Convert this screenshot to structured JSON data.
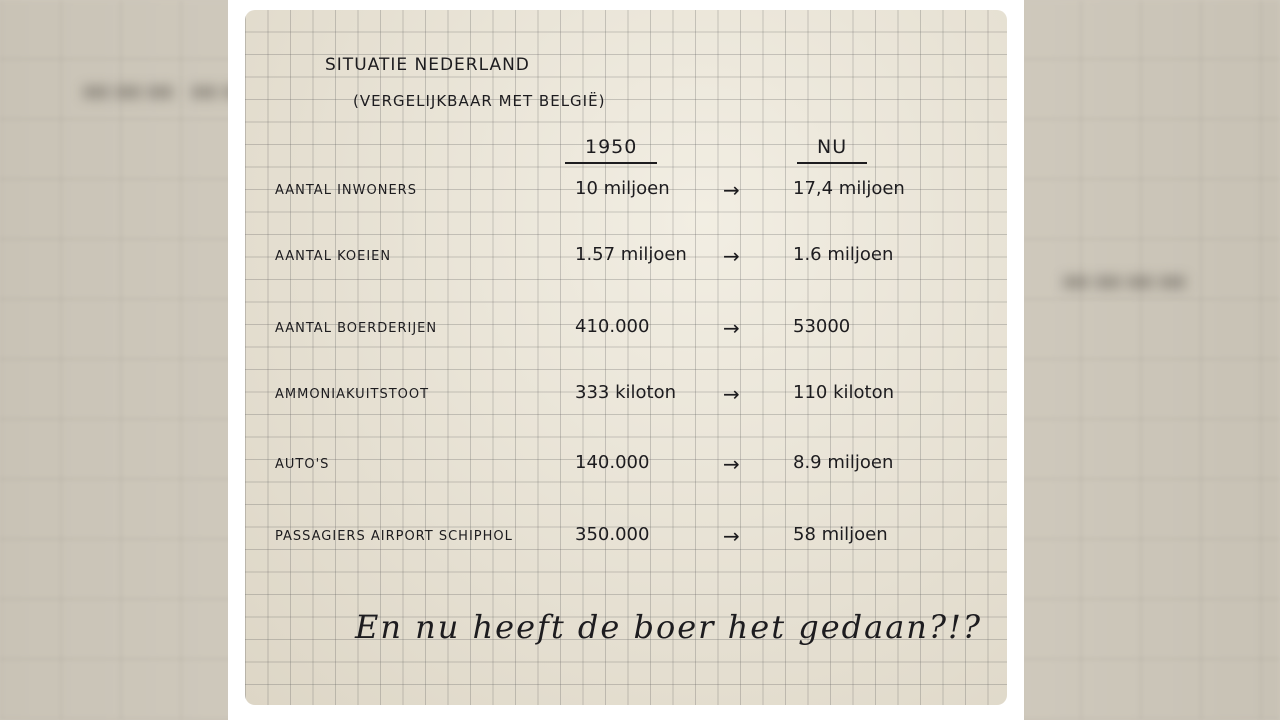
{
  "note": {
    "title": "Situatie Nederland",
    "subtitle": "(Vergelijkbaar met België)",
    "column_headers": [
      "1950",
      "NU"
    ],
    "arrow": "→",
    "rows": [
      {
        "label": "Aantal inwoners",
        "then": "10 miljoen",
        "now": "17,4 miljoen"
      },
      {
        "label": "Aantal koeien",
        "then": "1.57 miljoen",
        "now": "1.6 miljoen"
      },
      {
        "label": "Aantal boerderijen",
        "then": "410.000",
        "now": "53000"
      },
      {
        "label": "Ammoniakuitstoot",
        "then": "333 kiloton",
        "now": "110 kiloton"
      },
      {
        "label": "Auto's",
        "then": "140.000",
        "now": "8.9 miljoen"
      },
      {
        "label": "Passagiers Airport Schiphol",
        "then": "350.000",
        "now": "58 miljoen"
      }
    ],
    "closing": "En nu heeft de boer het gedaan?!?"
  }
}
